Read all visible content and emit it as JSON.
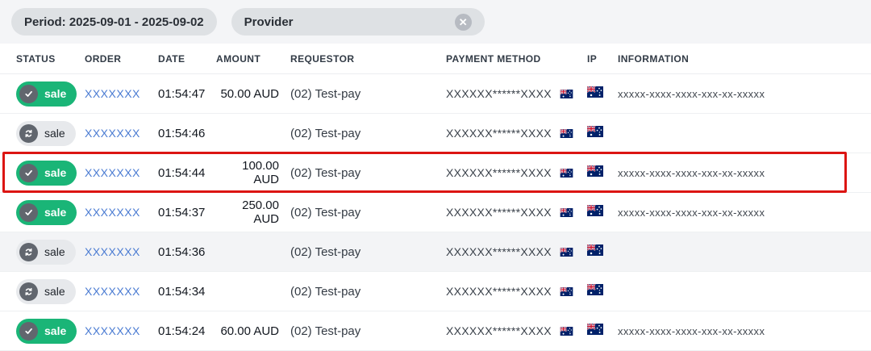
{
  "filters": {
    "period_label": "Period: 2025-09-01 - 2025-09-02",
    "provider_label": "Provider",
    "clear_glyph": "✕"
  },
  "icons": {
    "status_success": "check-icon",
    "status_neutral": "refresh-icon",
    "payment_country": "australia-flag-icon",
    "ip_country": "australia-flag-icon",
    "provider_clear": "clear-icon"
  },
  "colors": {
    "badge_success": "#1ab577",
    "badge_neutral": "#e7e9ec",
    "icon_circle": "#61666e",
    "link_blue": "#4a7bd2",
    "highlight_red": "#dc1512",
    "chip_gray": "#dee1e4",
    "flag_blue": "#012169",
    "flag_red": "#C8102E"
  },
  "table": {
    "columns": [
      "STATUS",
      "ORDER",
      "DATE",
      "AMOUNT",
      "REQUESTOR",
      "PAYMENT METHOD",
      "IP",
      "INFORMATION"
    ],
    "rows": [
      {
        "status": "sale",
        "status_type": "success",
        "status_icon": "check-icon",
        "order": "XXXXXXX",
        "date": "01:54:47",
        "amount": "50.00 AUD",
        "requestor": "(02) Test-pay",
        "payment_method": "XXXXXX******XXXX",
        "payment_flag": "australia-flag-icon",
        "ip_flag": "australia-flag-icon",
        "information": "xxxxx-xxxx-xxxx-xxx-xx-xxxxx",
        "highlighted": false,
        "shaded": false
      },
      {
        "status": "sale",
        "status_type": "neutral",
        "status_icon": "refresh-icon",
        "order": "XXXXXXX",
        "date": "01:54:46",
        "amount": "",
        "requestor": "(02) Test-pay",
        "payment_method": "XXXXXX******XXXX",
        "payment_flag": "australia-flag-icon",
        "ip_flag": "australia-flag-icon",
        "information": "",
        "highlighted": false,
        "shaded": false
      },
      {
        "status": "sale",
        "status_type": "success",
        "status_icon": "check-icon",
        "order": "XXXXXXX",
        "date": "01:54:44",
        "amount": "100.00 AUD",
        "requestor": "(02) Test-pay",
        "payment_method": "XXXXXX******XXXX",
        "payment_flag": "australia-flag-icon",
        "ip_flag": "australia-flag-icon",
        "information": "xxxxx-xxxx-xxxx-xxx-xx-xxxxx",
        "highlighted": true,
        "shaded": false
      },
      {
        "status": "sale",
        "status_type": "success",
        "status_icon": "check-icon",
        "order": "XXXXXXX",
        "date": "01:54:37",
        "amount": "250.00 AUD",
        "requestor": "(02) Test-pay",
        "payment_method": "XXXXXX******XXXX",
        "payment_flag": "australia-flag-icon",
        "ip_flag": "australia-flag-icon",
        "information": "xxxxx-xxxx-xxxx-xxx-xx-xxxxx",
        "highlighted": false,
        "shaded": false
      },
      {
        "status": "sale",
        "status_type": "neutral",
        "status_icon": "refresh-icon",
        "order": "XXXXXXX",
        "date": "01:54:36",
        "amount": "",
        "requestor": "(02) Test-pay",
        "payment_method": "XXXXXX******XXXX",
        "payment_flag": "australia-flag-icon",
        "ip_flag": "australia-flag-icon",
        "information": "",
        "highlighted": false,
        "shaded": true
      },
      {
        "status": "sale",
        "status_type": "neutral",
        "status_icon": "refresh-icon",
        "order": "XXXXXXX",
        "date": "01:54:34",
        "amount": "",
        "requestor": "(02) Test-pay",
        "payment_method": "XXXXXX******XXXX",
        "payment_flag": "australia-flag-icon",
        "ip_flag": "australia-flag-icon",
        "information": "",
        "highlighted": false,
        "shaded": false
      },
      {
        "status": "sale",
        "status_type": "success",
        "status_icon": "check-icon",
        "order": "XXXXXXX",
        "date": "01:54:24",
        "amount": "60.00 AUD",
        "requestor": "(02) Test-pay",
        "payment_method": "XXXXXX******XXXX",
        "payment_flag": "australia-flag-icon",
        "ip_flag": "australia-flag-icon",
        "information": "xxxxx-xxxx-xxxx-xxx-xx-xxxxx",
        "highlighted": false,
        "shaded": false
      }
    ]
  }
}
